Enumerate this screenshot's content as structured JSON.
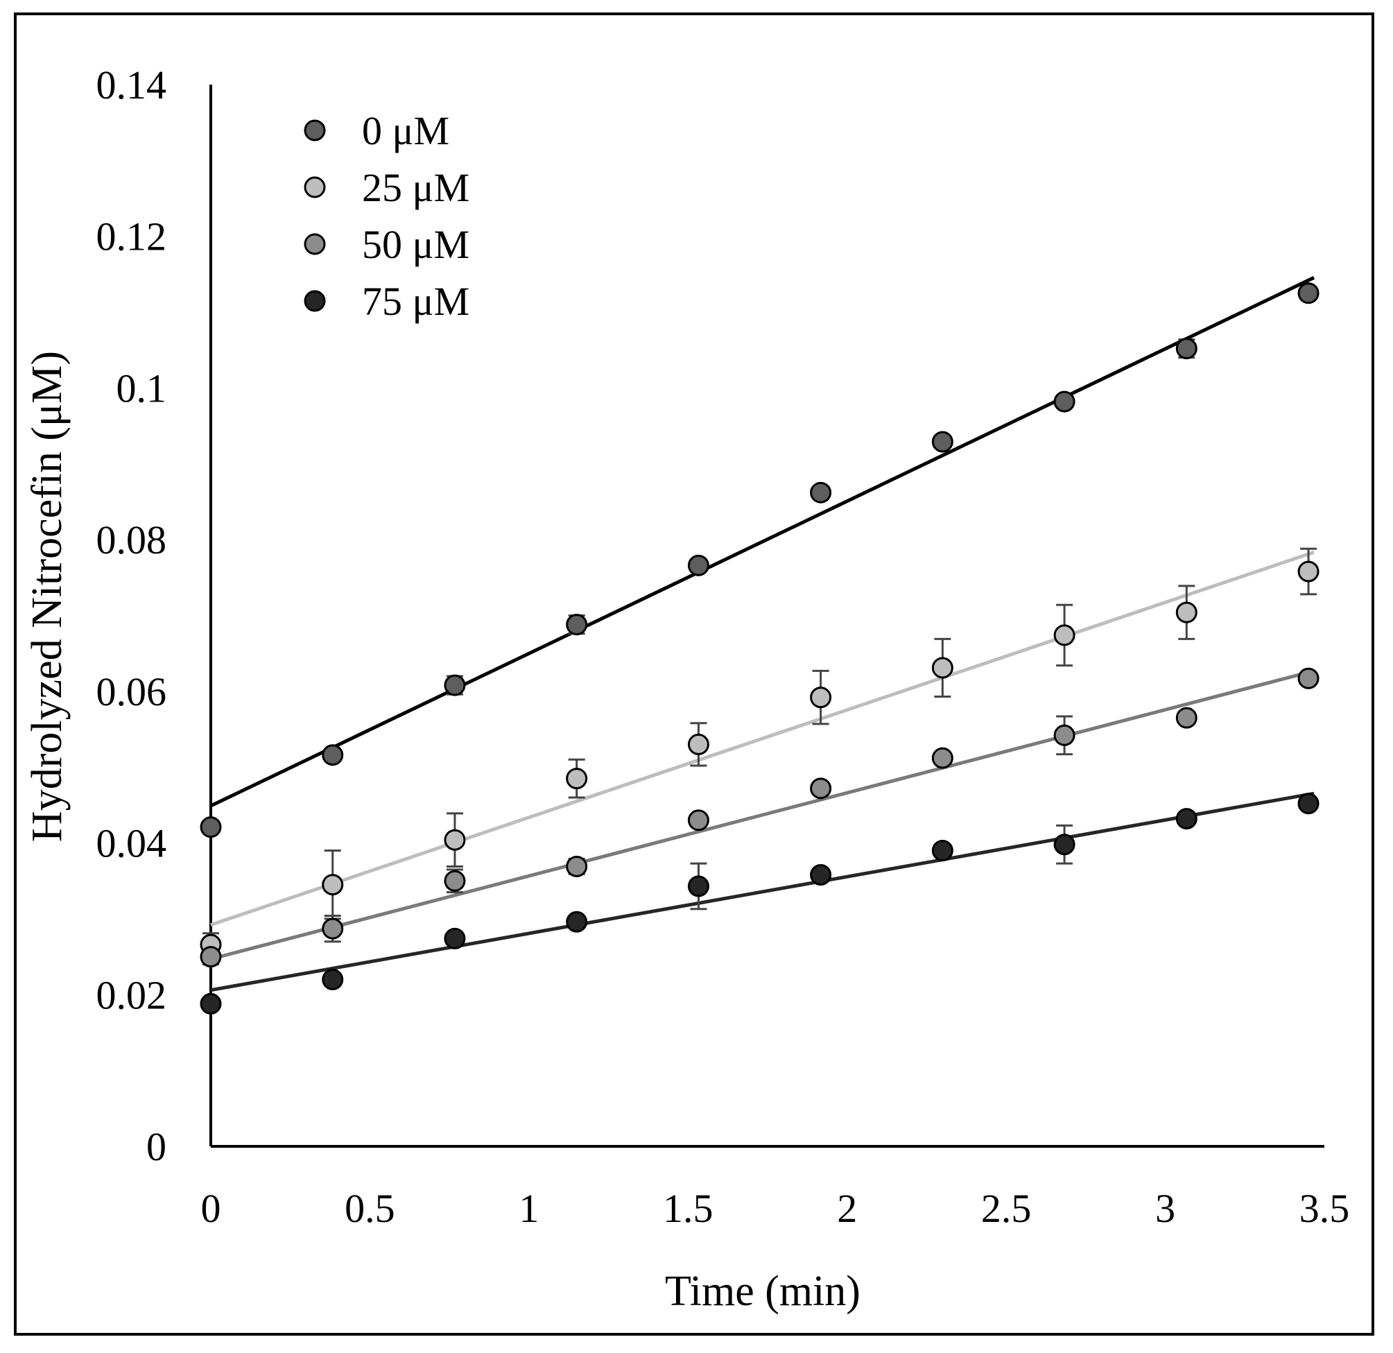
{
  "chart_data": {
    "type": "scatter",
    "title": "",
    "xlabel": "Time (min)",
    "ylabel": "Hydrolyzed Nitrocefin (μM)",
    "xlim": [
      0,
      3.5
    ],
    "ylim": [
      0,
      0.14
    ],
    "x_ticks": [
      0,
      0.5,
      1,
      1.5,
      2,
      2.5,
      3,
      3.5
    ],
    "x_tick_labels": [
      "0",
      "0.5",
      "1",
      "1.5",
      "2",
      "2.5",
      "3",
      "3.5"
    ],
    "y_ticks": [
      0,
      0.02,
      0.04,
      0.06,
      0.08,
      0.1,
      0.12,
      0.14
    ],
    "y_tick_labels": [
      "0",
      "0.02",
      "0.04",
      "0.06",
      "0.08",
      "0.1",
      "0.12",
      "0.14"
    ],
    "grid": false,
    "legend_position": "top-left",
    "x": [
      0,
      0.383,
      0.767,
      1.15,
      1.533,
      1.917,
      2.3,
      2.683,
      3.067,
      3.45
    ],
    "series": [
      {
        "name": "0 μM",
        "marker_color": "#5e5e5e",
        "line_color": "#000000",
        "values": [
          0.0421,
          0.0516,
          0.0608,
          0.0688,
          0.0766,
          0.0862,
          0.0929,
          0.0982,
          0.1052,
          0.1125
        ],
        "errors": [
          0.0003,
          0.0008,
          0.0012,
          0.0012,
          0.0008,
          0.0005,
          0.0006,
          0.0008,
          0.0012,
          0.0008
        ],
        "trendline": [
          0.0449,
          0.1142
        ]
      },
      {
        "name": "25 μM",
        "marker_color": "#bdbdbd",
        "line_color": "#bdbdbd",
        "values": [
          0.0266,
          0.0345,
          0.0404,
          0.0485,
          0.053,
          0.0592,
          0.0631,
          0.0674,
          0.0704,
          0.0758
        ],
        "errors": [
          0.0015,
          0.0045,
          0.0035,
          0.0025,
          0.0028,
          0.0035,
          0.0038,
          0.004,
          0.0035,
          0.003
        ],
        "trendline": [
          0.0292,
          0.0781
        ]
      },
      {
        "name": "50 μM",
        "marker_color": "#8c8c8c",
        "line_color": "#7a7a7a",
        "values": [
          0.025,
          0.0287,
          0.035,
          0.0369,
          0.043,
          0.0472,
          0.0512,
          0.0542,
          0.0565,
          0.0617
        ],
        "errors": [
          0.001,
          0.0017,
          0.0015,
          0.001,
          0.0005,
          0.0005,
          0.0005,
          0.0025,
          0.0005,
          0.0005
        ],
        "trendline": [
          0.0247,
          0.0625
        ]
      },
      {
        "name": "75 μM",
        "marker_color": "#262626",
        "line_color": "#262626",
        "values": [
          0.0188,
          0.022,
          0.0274,
          0.0296,
          0.0343,
          0.0358,
          0.039,
          0.0398,
          0.0432,
          0.0452
        ],
        "errors": [
          0.0005,
          0.0008,
          0.0005,
          0.0005,
          0.003,
          0.0005,
          0.0008,
          0.0025,
          0.0005,
          0.0005
        ],
        "trendline": [
          0.0206,
          0.0464
        ]
      }
    ]
  }
}
